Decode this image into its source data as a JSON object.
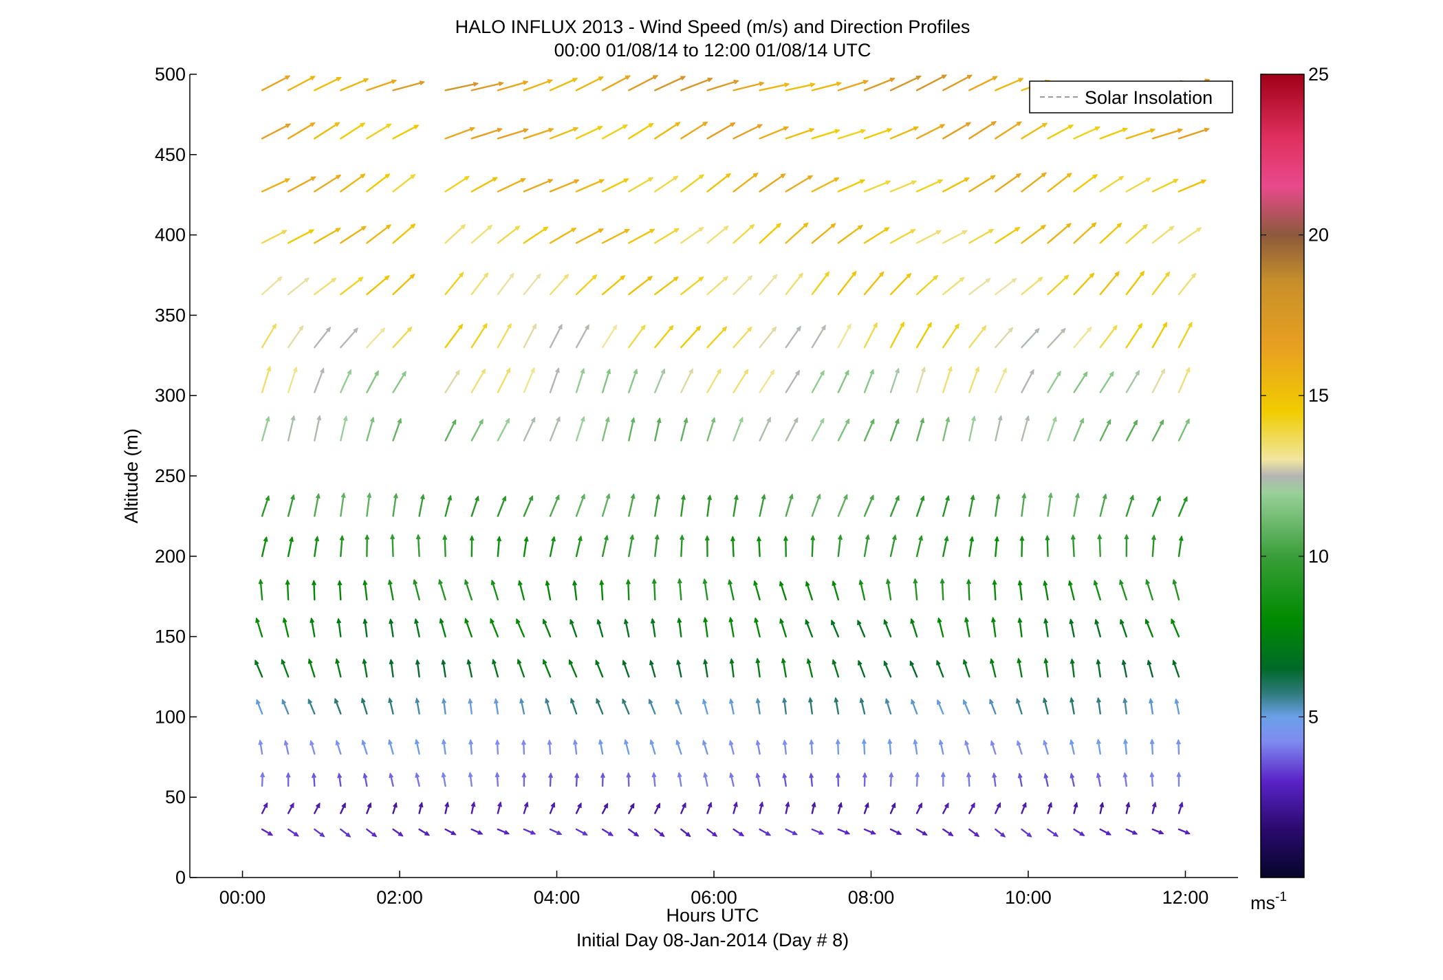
{
  "chart_data": {
    "type": "quiver",
    "title_line1": "HALO INFLUX 2013 - Wind Speed (m/s) and Direction Profiles",
    "title_line2": "00:00 01/08/14 to 12:00 01/08/14  UTC",
    "xlabel": "Hours UTC",
    "xlabel_sub": "Initial Day 08-Jan-2014 (Day # 8)",
    "ylabel": "Altitude (m)",
    "xlim": [
      -0.67,
      12.67
    ],
    "ylim": [
      0,
      500
    ],
    "x_ticks": [
      0,
      2,
      4,
      6,
      8,
      10,
      12
    ],
    "x_tick_labels": [
      "00:00",
      "02:00",
      "04:00",
      "06:00",
      "08:00",
      "10:00",
      "12:00"
    ],
    "y_ticks": [
      0,
      50,
      100,
      150,
      200,
      250,
      300,
      350,
      400,
      450,
      500
    ],
    "y_tick_labels": [
      "0",
      "50",
      "100",
      "150",
      "200",
      "250",
      "300",
      "350",
      "400",
      "450",
      "500"
    ],
    "legend": {
      "label": "Solar Insolation",
      "placement": "top-right",
      "line_color": "#9a9a9a"
    },
    "colorbar": {
      "range": [
        0,
        25
      ],
      "ticks": [
        5,
        10,
        15,
        20,
        25
      ],
      "tick_labels": [
        "5",
        "10",
        "15",
        "20",
        "25"
      ],
      "unit_base": "ms",
      "unit_exp": "-1"
    },
    "grid": false,
    "altitudes": [
      30,
      40,
      57,
      77,
      102,
      125,
      150,
      173,
      200,
      225,
      272,
      302,
      330,
      363,
      395,
      427,
      460,
      490
    ],
    "hours": [
      0.25,
      0.583,
      0.917,
      1.25,
      1.583,
      1.917,
      2.25,
      2.583,
      2.917,
      3.25,
      3.583,
      3.917,
      4.25,
      4.583,
      4.917,
      5.25,
      5.583,
      5.917,
      6.25,
      6.583,
      6.917,
      7.25,
      7.583,
      7.917,
      8.25,
      8.583,
      8.917,
      9.25,
      9.583,
      9.917,
      10.25,
      10.583,
      10.917,
      11.25,
      11.583,
      11.917
    ],
    "profile_points": [
      {
        "altitude": 30,
        "speed": 3.0,
        "direction": 300
      },
      {
        "altitude": 40,
        "speed": 2.5,
        "direction": 200
      },
      {
        "altitude": 57,
        "speed": 3.8,
        "direction": 175
      },
      {
        "altitude": 77,
        "speed": 4.5,
        "direction": 170
      },
      {
        "altitude": 102,
        "speed": 5.5,
        "direction": 165
      },
      {
        "altitude": 125,
        "speed": 7.0,
        "direction": 165
      },
      {
        "altitude": 150,
        "speed": 7.5,
        "direction": 165
      },
      {
        "altitude": 173,
        "speed": 8.5,
        "direction": 170
      },
      {
        "altitude": 200,
        "speed": 9.0,
        "direction": 185
      },
      {
        "altitude": 225,
        "speed": 10.0,
        "direction": 195
      },
      {
        "altitude": 272,
        "speed": 11.5,
        "direction": 200
      },
      {
        "altitude": 302,
        "speed": 12.5,
        "direction": 205
      },
      {
        "altitude": 330,
        "speed": 13.5,
        "direction": 215
      },
      {
        "altitude": 363,
        "speed": 14.0,
        "direction": 225
      },
      {
        "altitude": 395,
        "speed": 14.5,
        "direction": 235
      },
      {
        "altitude": 427,
        "speed": 15.0,
        "direction": 240
      },
      {
        "altitude": 460,
        "speed": 15.5,
        "direction": 245
      },
      {
        "altitude": 490,
        "speed": 16.5,
        "direction": 250
      }
    ]
  }
}
